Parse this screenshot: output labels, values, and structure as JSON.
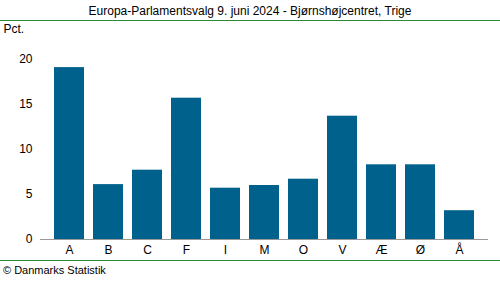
{
  "chart_data": {
    "type": "bar",
    "title": "Europa-Parlamentsvalg 9. juni 2024 - Bjørnshøjcentret, Trige",
    "y_label": "Pct.",
    "categories": [
      "A",
      "B",
      "C",
      "F",
      "I",
      "M",
      "O",
      "V",
      "Æ",
      "Ø",
      "Å"
    ],
    "values": [
      19.1,
      6.1,
      7.7,
      15.7,
      5.7,
      6.0,
      6.7,
      13.7,
      8.3,
      8.3,
      3.2
    ],
    "color": "#00628c",
    "ylim": [
      0,
      20
    ],
    "yticks": [
      0,
      5,
      10,
      15,
      20
    ],
    "grid": false,
    "source": "© Danmarks Statistik"
  }
}
